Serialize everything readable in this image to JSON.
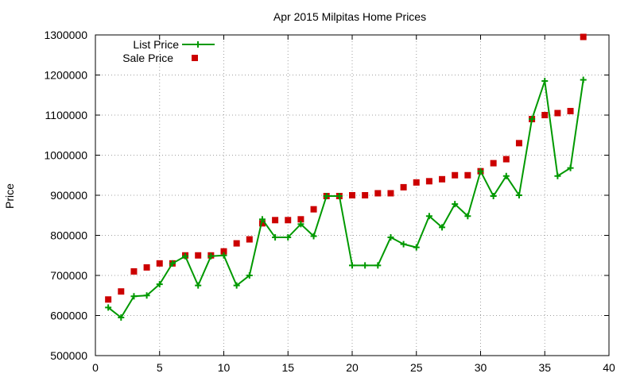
{
  "chart_data": {
    "type": "line",
    "title": "Apr 2015 Milpitas Home Prices",
    "xlabel": "",
    "ylabel": "Price",
    "xlim": [
      0,
      40
    ],
    "ylim": [
      500000,
      1300000
    ],
    "x_ticks": [
      0,
      5,
      10,
      15,
      20,
      25,
      30,
      35,
      40
    ],
    "y_ticks": [
      500000,
      600000,
      700000,
      800000,
      900000,
      1000000,
      1100000,
      1200000,
      1300000
    ],
    "grid": true,
    "legend_position": "top-left",
    "series": [
      {
        "name": "List Price",
        "style": "line-with-plus-markers",
        "color": "#009900",
        "x": [
          1,
          2,
          3,
          4,
          5,
          6,
          7,
          8,
          9,
          10,
          11,
          12,
          13,
          14,
          15,
          16,
          17,
          18,
          19,
          20,
          21,
          22,
          23,
          24,
          25,
          26,
          27,
          28,
          29,
          30,
          31,
          32,
          33,
          34,
          35,
          36,
          37,
          38
        ],
        "values": [
          620000,
          595000,
          648000,
          650000,
          678000,
          730000,
          748000,
          675000,
          748000,
          750000,
          675000,
          700000,
          840000,
          795000,
          795000,
          828000,
          798000,
          898000,
          898000,
          725000,
          725000,
          725000,
          795000,
          778000,
          770000,
          848000,
          820000,
          878000,
          848000,
          960000,
          898000,
          948000,
          900000,
          1090000,
          1185000,
          948000,
          968000,
          1188000
        ]
      },
      {
        "name": "Sale Price",
        "style": "square-markers",
        "color": "#cc0000",
        "x": [
          1,
          2,
          3,
          4,
          5,
          6,
          7,
          8,
          9,
          10,
          11,
          12,
          13,
          14,
          15,
          16,
          17,
          18,
          19,
          20,
          21,
          22,
          23,
          24,
          25,
          26,
          27,
          28,
          29,
          30,
          31,
          32,
          33,
          34,
          35,
          36,
          37,
          38
        ],
        "values": [
          640000,
          660000,
          710000,
          720000,
          730000,
          730000,
          750000,
          750000,
          750000,
          760000,
          780000,
          790000,
          830000,
          838000,
          838000,
          840000,
          865000,
          898000,
          898000,
          900000,
          900000,
          905000,
          905000,
          920000,
          932000,
          935000,
          940000,
          950000,
          950000,
          960000,
          980000,
          990000,
          1030000,
          1090000,
          1100000,
          1105000,
          1110000,
          1295000
        ]
      }
    ]
  }
}
